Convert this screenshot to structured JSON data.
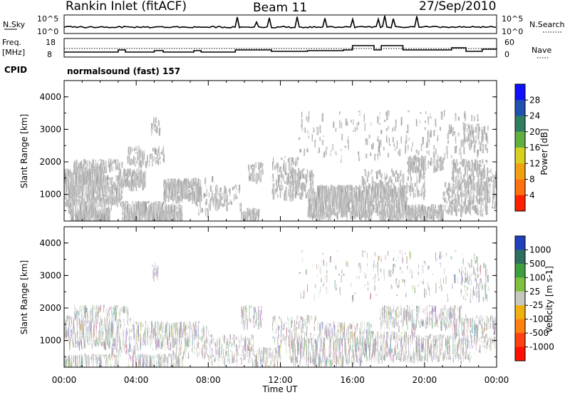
{
  "header": {
    "station": "Rankin Inlet (fitACF)",
    "beam": "Beam 11",
    "date": "27/Sep/2010"
  },
  "aux_panels": {
    "nsky_label": "N.Sky",
    "nsky_ticks": [
      "10^5",
      "10^0"
    ],
    "nsearch_label": "N.Search",
    "nsearch_ticks": [
      "10^5",
      "10^0"
    ],
    "freq_label_1": "Freq.",
    "freq_label_2": "[MHz]",
    "freq_ticks": [
      "18",
      "8"
    ],
    "nave_label": "Nave",
    "nave_ticks": [
      "60",
      "0"
    ],
    "cpid_label": "CPID",
    "cpid_value": "normalsound (fast) 157"
  },
  "chart_data": [
    {
      "type": "heatmap",
      "name": "power-panel",
      "ylabel": "Slant Range [km]",
      "xlabel": "",
      "ylim": [
        180,
        4500
      ],
      "yticks": [
        "1000",
        "2000",
        "3000",
        "4000"
      ],
      "colorbar_label": "Power [dB]",
      "colorbar_ticks": [
        "4",
        "8",
        "12",
        "16",
        "20",
        "24",
        "28"
      ],
      "colorbar_colors": [
        "#1010ff",
        "#2050b0",
        "#2f7f5f",
        "#60b040",
        "#d8d020",
        "#f0a010",
        "#ff7010",
        "#ff2000"
      ]
    },
    {
      "type": "heatmap",
      "name": "velocity-panel",
      "ylabel": "Slant Range [km]",
      "xlabel": "Time UT",
      "ylim": [
        180,
        4500
      ],
      "yticks": [
        "1000",
        "2000",
        "3000",
        "4000"
      ],
      "xticks": [
        "00:00",
        "04:00",
        "08:00",
        "12:00",
        "16:00",
        "20:00",
        "00:00"
      ],
      "colorbar_label": "Velocity [m s-1]",
      "colorbar_ticks": [
        "1000",
        "500",
        "100",
        "25",
        "-25",
        "-100",
        "-500",
        "-1000"
      ],
      "colorbar_colors": [
        "#2040c0",
        "#2f6f5f",
        "#3f9f3f",
        "#80c040",
        "#c8c8c0",
        "#f0b010",
        "#ff8010",
        "#ff4010",
        "#ff1000"
      ]
    }
  ]
}
